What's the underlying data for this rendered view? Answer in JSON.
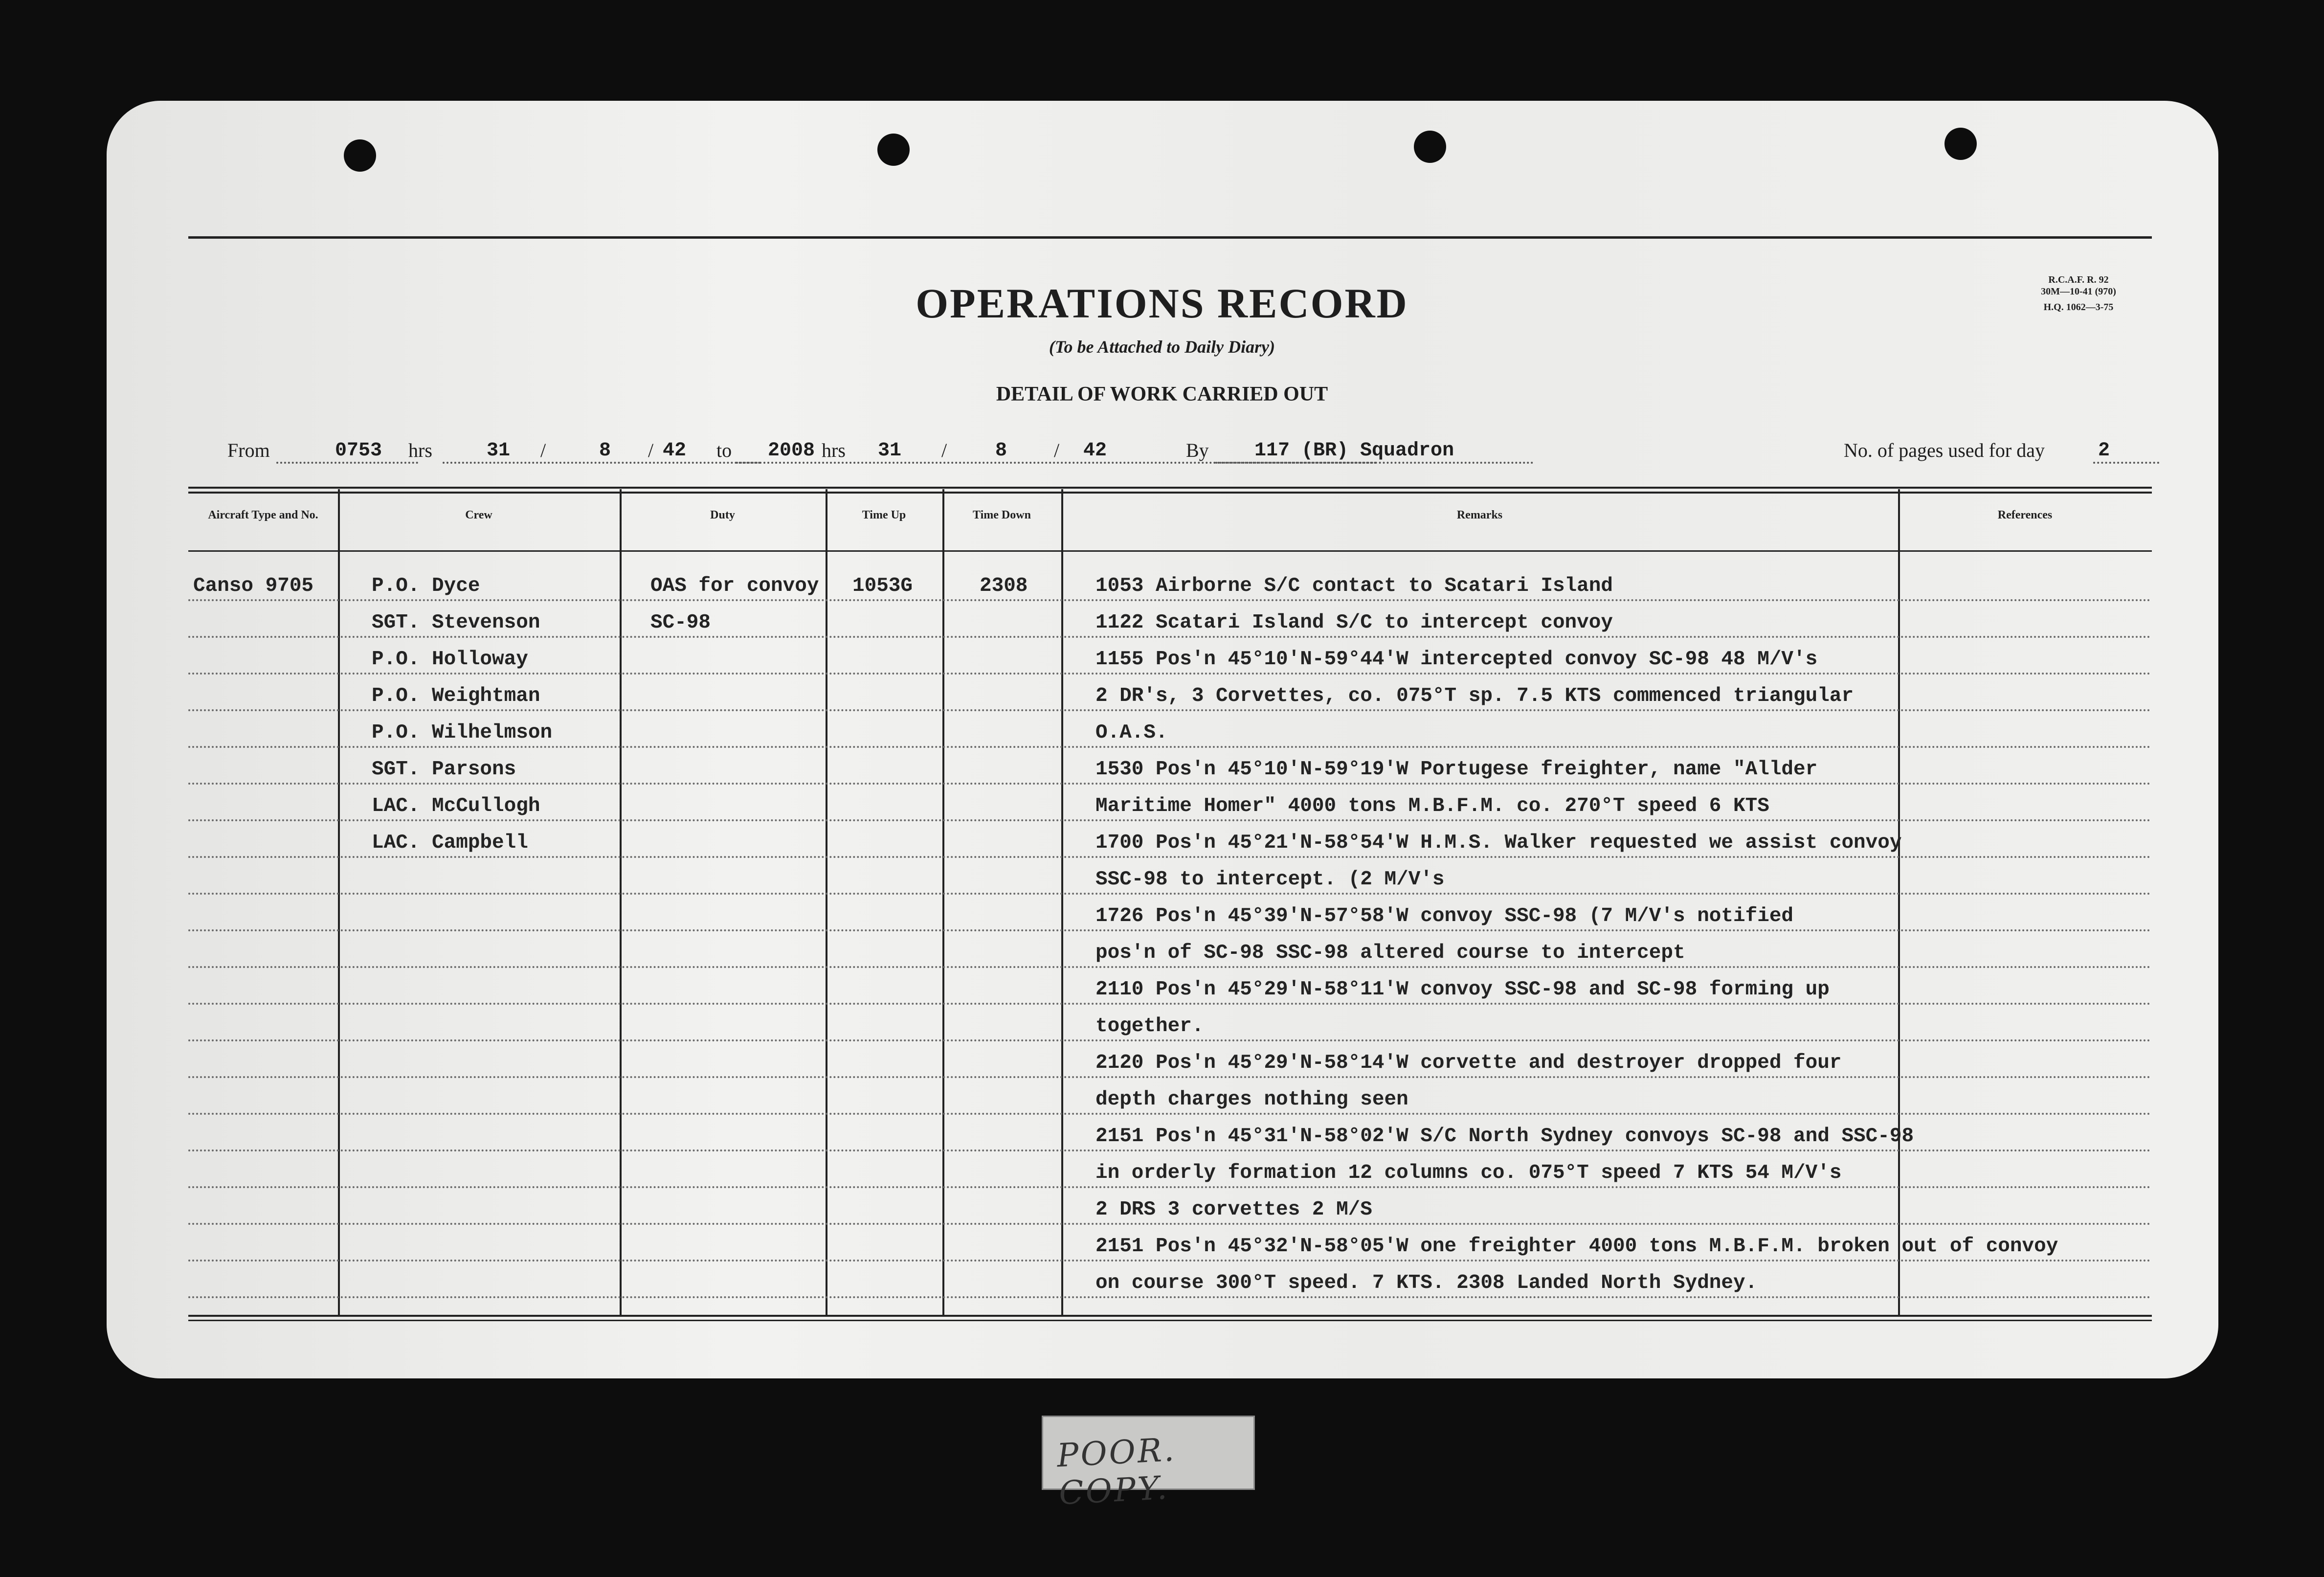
{
  "form": {
    "title": "OPERATIONS RECORD",
    "subtitle": "(To be Attached to Daily Diary)",
    "section": "DETAIL OF WORK CARRIED OUT",
    "code_line1": "R.C.A.F. R. 92",
    "code_line2": "30M—10-41 (970)",
    "code_line3": "H.Q. 1062—3-75"
  },
  "period": {
    "from_label": "From",
    "from_time": "0753",
    "hrs_label": "hrs",
    "from_day": "31",
    "from_month": "8",
    "from_year": "42",
    "to_label": "to",
    "to_time": "2008",
    "to_day": "31",
    "to_month": "8",
    "to_year": "42",
    "slash": "/",
    "by_label": "By",
    "squadron": "117 (BR) Squadron",
    "pages_label": "No. of pages used for day",
    "pages": "2"
  },
  "table": {
    "headers": [
      "Aircraft Type and No.",
      "Crew",
      "Duty",
      "Time Up",
      "Time Down",
      "Remarks",
      "References"
    ],
    "aircraft": [
      "Canso 9705"
    ],
    "crew": [
      "P.O. Dyce",
      "SGT. Stevenson",
      "P.O. Holloway",
      "P.O. Weightman",
      "P.O. Wilhelmson",
      "SGT. Parsons",
      "LAC. McCullogh",
      "LAC. Campbell"
    ],
    "duty": [
      "OAS for convoy",
      "SC-98"
    ],
    "time_up": [
      "1053G"
    ],
    "time_down": [
      "2308"
    ],
    "remarks": [
      "1053 Airborne S/C contact to Scatari Island",
      "1122 Scatari Island S/C to intercept convoy",
      "1155 Pos'n 45°10'N-59°44'W intercepted convoy SC-98   48 M/V's",
      "2 DR's, 3 Corvettes, co. 075°T sp. 7.5 KTS commenced triangular",
      "O.A.S.",
      "1530 Pos'n 45°10'N-59°19'W Portugese freighter, name \"Allder",
      "Maritime Homer\"  4000 tons M.B.F.M. co. 270°T speed 6 KTS",
      "1700 Pos'n 45°21'N-58°54'W H.M.S. Walker requested we assist convoy",
      "SSC-98 to intercept.             (2 M/V's",
      "1726 Pos'n 45°39'N-57°58'W convoy SSC-98 (7 M/V's notified",
      "pos'n of SC-98    SSC-98 altered course to intercept",
      "2110 Pos'n 45°29'N-58°11'W convoy SSC-98 and SC-98 forming up",
      "together.",
      "2120 Pos'n 45°29'N-58°14'W corvette and destroyer dropped four",
      "depth charges nothing seen",
      "2151 Pos'n 45°31'N-58°02'W S/C North Sydney convoys SC-98 and SSC-98",
      "in orderly formation 12 columns co. 075°T speed 7 KTS 54 M/V's",
      "2 DRS 3 corvettes 2 M/S",
      "2151 Pos'n 45°32'N-58°05'W one freighter 4000 tons M.B.F.M. broken out of convoy",
      "on course 300°T speed.  7 KTS.        2308 Landed North Sydney."
    ]
  },
  "stamp": {
    "text": "POOR. COPY."
  }
}
